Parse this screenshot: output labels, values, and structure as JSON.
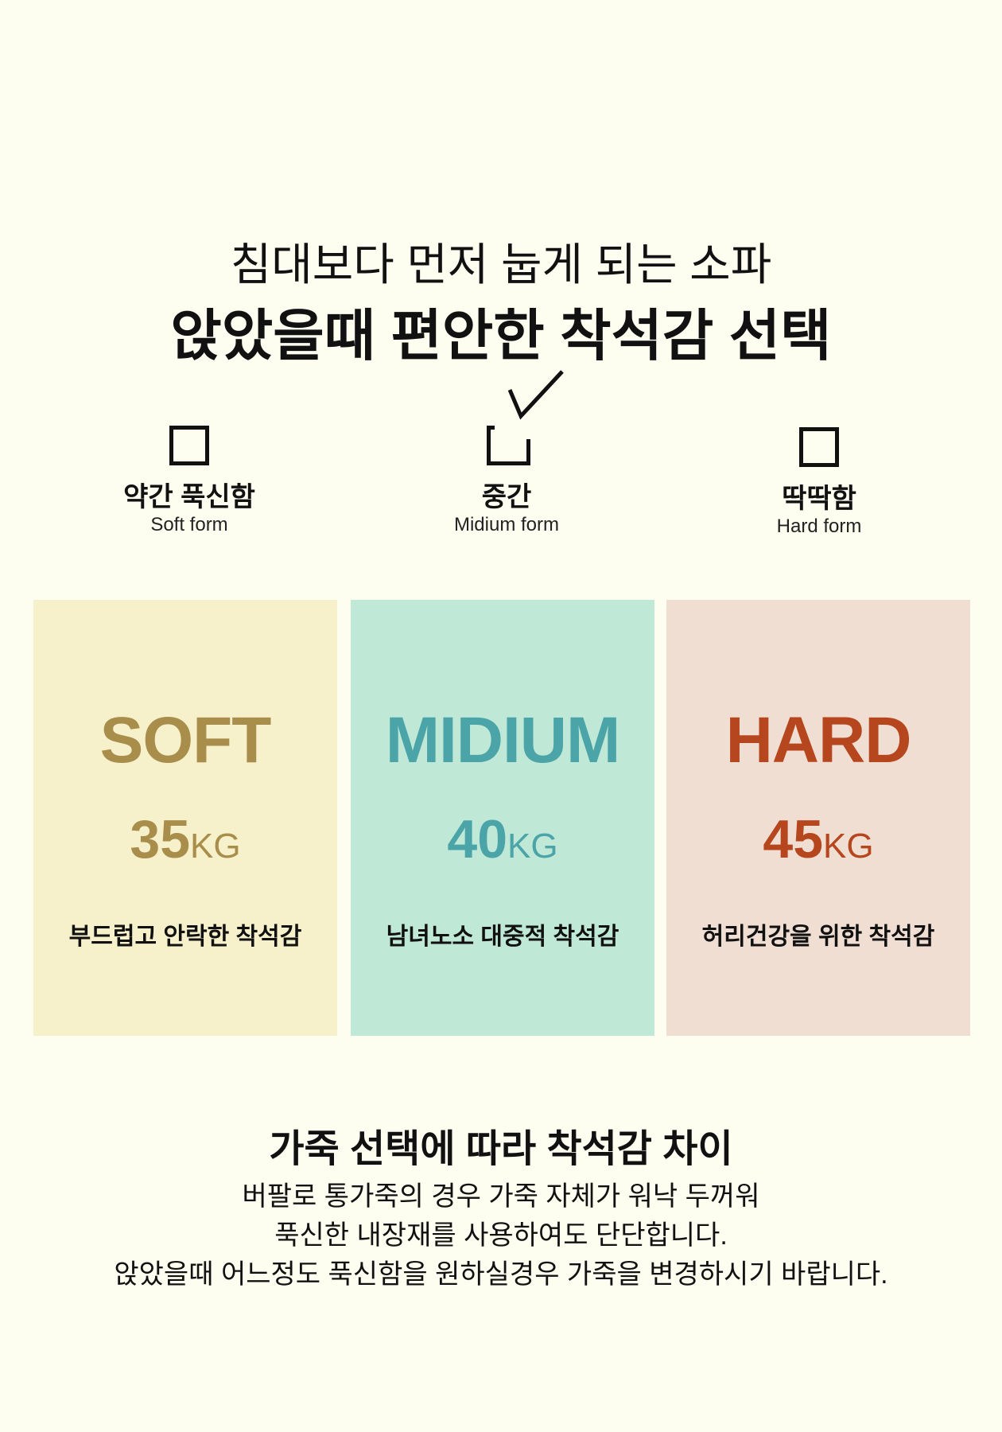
{
  "header": {
    "subtitle": "침대보다 먼저 눕게 되는 소파",
    "title": "앉았을때 편안한 착석감 선택"
  },
  "options": [
    {
      "label": "약간 푹신함",
      "sub": "Soft form",
      "checked": false
    },
    {
      "label": "중간",
      "sub": "Midium form",
      "checked": true
    },
    {
      "label": "딱딱함",
      "sub": "Hard form",
      "checked": false
    }
  ],
  "cards": [
    {
      "name": "SOFT",
      "weight": "35",
      "unit": "KG",
      "desc": "부드럽고 안락한 착석감",
      "bg": "#f6f0cb",
      "color": "#a88d4b"
    },
    {
      "name": "MIDIUM",
      "weight": "40",
      "unit": "KG",
      "desc": "남녀노소 대중적 착석감",
      "bg": "#bfe8d7",
      "color": "#4ba4a8"
    },
    {
      "name": "HARD",
      "weight": "45",
      "unit": "KG",
      "desc": "허리건강을 위한 착석감",
      "bg": "#f1ded2",
      "color": "#b5461e"
    }
  ],
  "footer": {
    "title": "가죽 선택에 따라 착석감 차이",
    "lines": [
      "버팔로 통가죽의 경우 가죽 자체가 워낙 두꺼워",
      "푹신한 내장재를 사용하여도 단단합니다.",
      "앉았을때 어느정도 푹신함을 원하실경우 가죽을 변경하시기 바랍니다."
    ]
  }
}
